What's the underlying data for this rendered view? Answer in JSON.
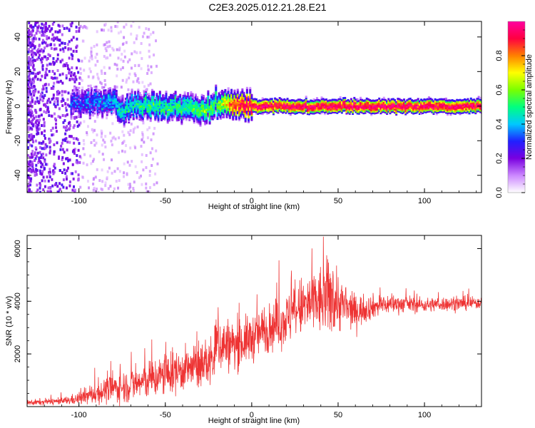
{
  "title": "C2E3.2025.012.21.28.E21",
  "chart_data": [
    {
      "type": "heatmap",
      "xlabel": "Height of straight line (km)",
      "ylabel": "Frequency (Hz)",
      "xlim": [
        -130,
        133
      ],
      "ylim": [
        -50,
        49
      ],
      "xticks": [
        "-100",
        "-50",
        "0",
        "50",
        "100"
      ],
      "yticks": [
        "-40",
        "-20",
        "0",
        "20",
        "40"
      ],
      "colorbar": {
        "label": "Normalized spectral amplitude",
        "range": [
          0,
          1
        ],
        "ticks": [
          "0.0",
          "0.2",
          "0.4",
          "0.6",
          "0.8"
        ],
        "colors": [
          "#ffffff",
          "#cc88ff",
          "#7a00e0",
          "#2020ff",
          "#00c8ff",
          "#00ff80",
          "#7aff00",
          "#ffff00",
          "#ff8000",
          "#ff0040",
          "#ff00a0"
        ]
      },
      "ridge": {
        "description_points_x": [
          -100,
          -90,
          -80,
          -75,
          -70,
          -60,
          -50,
          -40,
          -30,
          -20,
          -10,
          0,
          25,
          50,
          75,
          100,
          133
        ],
        "description_points_freq": [
          3,
          3,
          2,
          -3,
          -1,
          0,
          0,
          -1,
          -2,
          1,
          2,
          0,
          0,
          0,
          0,
          0,
          0
        ],
        "amplitude": [
          0.3,
          0.35,
          0.4,
          0.45,
          0.45,
          0.5,
          0.5,
          0.5,
          0.55,
          0.55,
          0.9,
          0.95,
          0.95,
          0.95,
          0.95,
          0.95,
          0.95
        ]
      }
    },
    {
      "type": "line",
      "xlabel": "Height of straight line (km)",
      "ylabel": "SNR (10 * v/v)",
      "xlim": [
        -130,
        133
      ],
      "ylim": [
        0,
        6500
      ],
      "xticks": [
        "-100",
        "-50",
        "0",
        "50",
        "100"
      ],
      "yticks": [
        "2000",
        "4000",
        "6000"
      ],
      "color": "#ee3333",
      "envelope": {
        "x": [
          -130,
          -110,
          -100,
          -90,
          -80,
          -70,
          -60,
          -50,
          -40,
          -30,
          -22,
          -20,
          -10,
          0,
          10,
          20,
          25,
          30,
          40,
          45,
          50,
          55,
          60,
          70,
          80,
          90,
          100,
          110,
          120,
          133
        ],
        "mean": [
          150,
          200,
          300,
          500,
          700,
          800,
          1000,
          1200,
          1400,
          1500,
          1800,
          2400,
          2300,
          2600,
          3000,
          3300,
          3600,
          3800,
          4000,
          4200,
          4000,
          3700,
          3600,
          3800,
          3900,
          3900,
          3850,
          3900,
          3900,
          3950
        ],
        "spread": [
          120,
          150,
          250,
          450,
          600,
          700,
          800,
          900,
          900,
          900,
          1100,
          1300,
          1000,
          1000,
          1000,
          1100,
          1200,
          1300,
          1500,
          1700,
          1300,
          900,
          700,
          500,
          400,
          350,
          300,
          300,
          300,
          250
        ]
      }
    }
  ]
}
